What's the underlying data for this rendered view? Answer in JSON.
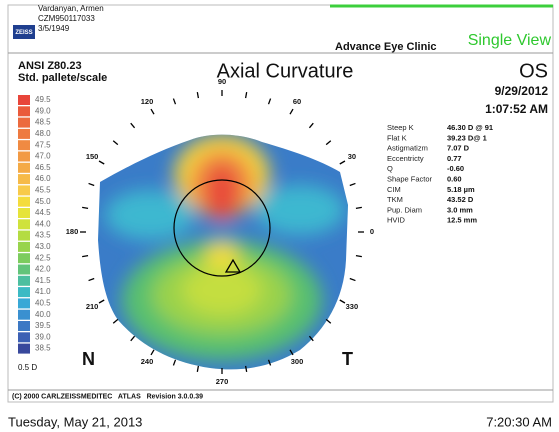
{
  "header": {
    "patient_name": "Vardanyan, Armen",
    "patient_id": "CZM950117033",
    "birth_date": "3/5/1949",
    "logo": "ZEISS",
    "clinic": "Advance Eye Clinic",
    "view": "Single View"
  },
  "map": {
    "standard": "ANSI Z80.23",
    "scale_name": "Std. pallete/scale",
    "title": "Axial Curvature",
    "eye": "OS",
    "date": "9/29/2012",
    "time": "1:07:52 AM",
    "scale": [
      {
        "label": "49.5",
        "color": "#e8453a"
      },
      {
        "label": "49.0",
        "color": "#ea5a3b"
      },
      {
        "label": "48.5",
        "color": "#ec6a3e"
      },
      {
        "label": "48.0",
        "color": "#ee7a40"
      },
      {
        "label": "47.5",
        "color": "#f08a42"
      },
      {
        "label": "47.0",
        "color": "#f29a44"
      },
      {
        "label": "46.5",
        "color": "#f4aa46"
      },
      {
        "label": "46.0",
        "color": "#f6ba48"
      },
      {
        "label": "45.5",
        "color": "#f8ca4a"
      },
      {
        "label": "45.0",
        "color": "#f4dc3c"
      },
      {
        "label": "44.5",
        "color": "#e6e43a"
      },
      {
        "label": "44.0",
        "color": "#cfe23c"
      },
      {
        "label": "43.5",
        "color": "#b4dc42"
      },
      {
        "label": "43.0",
        "color": "#98d44c"
      },
      {
        "label": "42.5",
        "color": "#7ccc5e"
      },
      {
        "label": "42.0",
        "color": "#62c47a"
      },
      {
        "label": "41.5",
        "color": "#4cbfa0"
      },
      {
        "label": "41.0",
        "color": "#3cbac4"
      },
      {
        "label": "40.5",
        "color": "#38a8d6"
      },
      {
        "label": "40.0",
        "color": "#3a90d0"
      },
      {
        "label": "39.5",
        "color": "#3c78c4"
      },
      {
        "label": "39.0",
        "color": "#3c60b4"
      },
      {
        "label": "38.5",
        "color": "#38489c"
      }
    ],
    "step": "0.5 D",
    "angles": [
      "0",
      "30",
      "60",
      "90",
      "120",
      "150",
      "180",
      "210",
      "240",
      "270",
      "300",
      "330"
    ],
    "nasal": "N",
    "temporal": "T"
  },
  "stats": [
    {
      "label": "Steep K",
      "value": "46.30 D @ 91"
    },
    {
      "label": "Flat K",
      "value": "39.23 D@ 1"
    },
    {
      "label": "Astigmatizm",
      "value": "7.07 D"
    },
    {
      "label": "Eccentricty",
      "value": "0.77"
    },
    {
      "label": "Q",
      "value": "-0.60"
    },
    {
      "label": "Shape Factor",
      "value": "0.60"
    },
    {
      "label": "CIM",
      "value": "5.18 µm"
    },
    {
      "label": "TKM",
      "value": "43.52 D"
    },
    {
      "label": "Pup. Diam",
      "value": "3.0 mm"
    },
    {
      "label": "HVID",
      "value": "12.5 mm"
    }
  ],
  "footer": {
    "copyright": "(C) 2000 CARLZEISSMEDITEC   ATLAS   Revision 3.0.0.39",
    "print_date": "Tuesday, May 21, 2013",
    "print_time": "7:20:30 AM"
  }
}
